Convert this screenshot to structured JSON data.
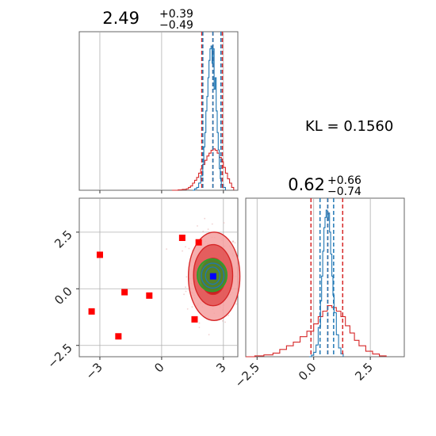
{
  "chart_data": {
    "type": "corner",
    "colors": {
      "red": "#d62728",
      "blue": "#1f77b4",
      "green": "#2ca02c",
      "square_red": "#ff0000",
      "square_blue": "#0000ff",
      "grid": "#b0b0b0",
      "frame": "#666666"
    },
    "kl_text": "KL = 0.1560",
    "param1": {
      "title_value": "2.49",
      "title_plus": "+0.39",
      "title_minus": "−0.49",
      "axis_range": [
        -4.0,
        3.7
      ],
      "tick_values": [
        -3,
        0,
        3
      ],
      "tick_labels": [
        "−3",
        "0",
        "3"
      ],
      "red_quantiles": [
        1.95,
        2.49,
        2.95
      ],
      "blue_quantiles": [
        2.0,
        2.49,
        2.88
      ]
    },
    "param2": {
      "title_value": "0.62",
      "title_plus": "+0.66",
      "title_minus": "−0.74",
      "axis_range": [
        -3.0,
        4.0
      ],
      "tick_values": [
        -2.5,
        0,
        2.5
      ],
      "tick_labels": [
        "−2.5",
        "0.0",
        "2.5"
      ],
      "red_quantiles": [
        -0.12,
        0.62,
        1.28
      ],
      "blue_quantiles": [
        0.28,
        0.62,
        0.88
      ]
    },
    "hist1_blue": {
      "x": [
        1.5,
        1.6,
        1.7,
        1.8,
        1.9,
        2.0,
        2.05,
        2.1,
        2.15,
        2.2,
        2.25,
        2.3,
        2.35,
        2.4,
        2.45,
        2.5,
        2.55,
        2.6,
        2.65,
        2.7,
        2.75,
        2.8,
        2.85,
        2.9,
        3.0,
        3.1
      ],
      "y": [
        0,
        0.01,
        0.02,
        0.05,
        0.1,
        0.18,
        0.3,
        0.4,
        0.55,
        0.65,
        0.78,
        0.9,
        0.98,
        1.0,
        0.88,
        0.98,
        0.7,
        0.78,
        0.55,
        0.4,
        0.28,
        0.15,
        0.08,
        0.04,
        0.02,
        0
      ]
    },
    "hist1_red": {
      "x": [
        0.5,
        0.8,
        1.0,
        1.2,
        1.3,
        1.4,
        1.5,
        1.6,
        1.7,
        1.8,
        1.9,
        2.0,
        2.1,
        2.2,
        2.3,
        2.4,
        2.5,
        2.6,
        2.7,
        2.8,
        2.9,
        3.0,
        3.1,
        3.2,
        3.3,
        3.4,
        3.5
      ],
      "y": [
        0,
        0.003,
        0.006,
        0.01,
        0.02,
        0.03,
        0.05,
        0.07,
        0.09,
        0.12,
        0.15,
        0.18,
        0.21,
        0.24,
        0.26,
        0.28,
        0.29,
        0.28,
        0.26,
        0.23,
        0.2,
        0.16,
        0.12,
        0.08,
        0.05,
        0.02,
        0
      ]
    },
    "hist2_blue": {
      "x": [
        -0.2,
        -0.1,
        0.0,
        0.1,
        0.2,
        0.3,
        0.35,
        0.4,
        0.45,
        0.5,
        0.55,
        0.6,
        0.65,
        0.7,
        0.75,
        0.8,
        0.85,
        0.9,
        1.0,
        1.1,
        1.2,
        1.3
      ],
      "y": [
        0,
        0.01,
        0.03,
        0.08,
        0.2,
        0.38,
        0.55,
        0.72,
        0.88,
        0.95,
        1.0,
        0.93,
        0.98,
        0.85,
        0.7,
        0.55,
        0.42,
        0.3,
        0.15,
        0.06,
        0.02,
        0
      ]
    },
    "hist2_red": {
      "x": [
        -3.0,
        -2.6,
        -2.2,
        -1.8,
        -1.5,
        -1.2,
        -0.9,
        -0.6,
        -0.3,
        0.0,
        0.2,
        0.4,
        0.6,
        0.8,
        1.0,
        1.2,
        1.4,
        1.6,
        1.8,
        2.0,
        2.3,
        2.6,
        2.9,
        3.2
      ],
      "y": [
        0,
        0.005,
        0.01,
        0.02,
        0.04,
        0.06,
        0.08,
        0.11,
        0.14,
        0.18,
        0.22,
        0.25,
        0.28,
        0.27,
        0.25,
        0.22,
        0.17,
        0.13,
        0.09,
        0.06,
        0.03,
        0.015,
        0.005,
        0
      ]
    },
    "scatter_squares": {
      "x": [
        -3.0,
        -3.4,
        -1.8,
        -2.1,
        -0.6,
        1.0,
        1.8,
        1.6
      ],
      "y": [
        1.5,
        -1.0,
        -0.15,
        -2.1,
        -0.3,
        2.25,
        2.05,
        -1.35
      ]
    },
    "truth_point": [
      2.5,
      0.55
    ],
    "contours": [
      {
        "level": "outer",
        "cx": 2.55,
        "cy": 0.55,
        "rx": 1.25,
        "ry": 1.95
      },
      {
        "level": "mid",
        "cx": 2.5,
        "cy": 0.6,
        "rx": 0.95,
        "ry": 1.35
      },
      {
        "level": "inner",
        "cx": 2.5,
        "cy": 0.55,
        "rx": 0.6,
        "ry": 0.8
      }
    ],
    "blue_contours": [
      {
        "cx": 2.48,
        "cy": 0.58,
        "rx": 0.55,
        "ry": 0.55
      },
      {
        "cx": 2.48,
        "cy": 0.58,
        "rx": 0.35,
        "ry": 0.38
      }
    ],
    "green_contours": [
      {
        "cx": 2.45,
        "cy": 0.6,
        "rx": 0.72,
        "ry": 0.72
      }
    ]
  }
}
